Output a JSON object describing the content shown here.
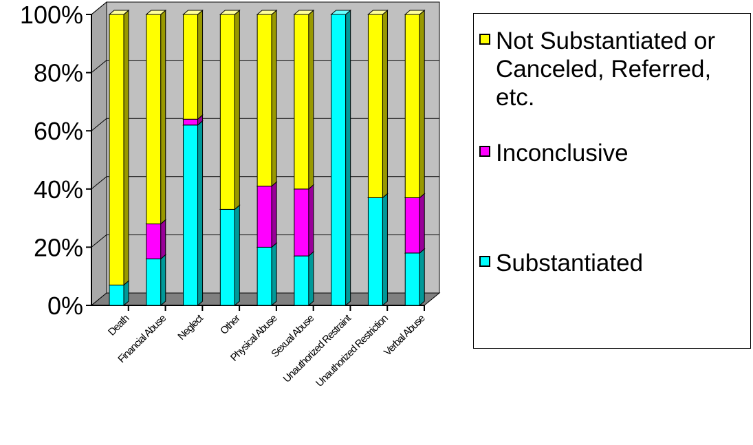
{
  "chart_data": {
    "type": "bar",
    "stacked": true,
    "percent": true,
    "three_d": true,
    "categories": [
      "Death",
      "Financial Abuse",
      "Neglect",
      "Other",
      "Physical Abuse",
      "Sexual Abuse",
      "Unauthorized Restraint",
      "Unauthorized Restriction",
      "Verbal Abuse"
    ],
    "series": [
      {
        "name": "Substantiated",
        "color": "#00FFFF",
        "side": "#009999",
        "top": "#66FFFF",
        "values": [
          7,
          16,
          62,
          33,
          20,
          17,
          100,
          37,
          18
        ]
      },
      {
        "name": "Inconclusive",
        "color": "#FF00FF",
        "side": "#990099",
        "top": "#FF66FF",
        "values": [
          0,
          12,
          2,
          0,
          21,
          23,
          0,
          0,
          19
        ]
      },
      {
        "name": "Not Substantiated or Canceled, Referred, etc.",
        "color": "#FFFF00",
        "side": "#999900",
        "top": "#FFFF99",
        "values": [
          93,
          72,
          36,
          67,
          59,
          60,
          0,
          63,
          63
        ]
      }
    ],
    "yticks": [
      "0%",
      "20%",
      "40%",
      "60%",
      "80%",
      "100%"
    ],
    "ylim": [
      0,
      100
    ],
    "grid": true,
    "legend_position": "right"
  },
  "legend": {
    "items": [
      {
        "label": "Not Substantiated or Canceled, Referred, etc.",
        "color": "#FFFF00"
      },
      {
        "label": "Inconclusive",
        "color": "#FF00FF"
      },
      {
        "label": "Substantiated",
        "color": "#00FFFF"
      }
    ]
  }
}
